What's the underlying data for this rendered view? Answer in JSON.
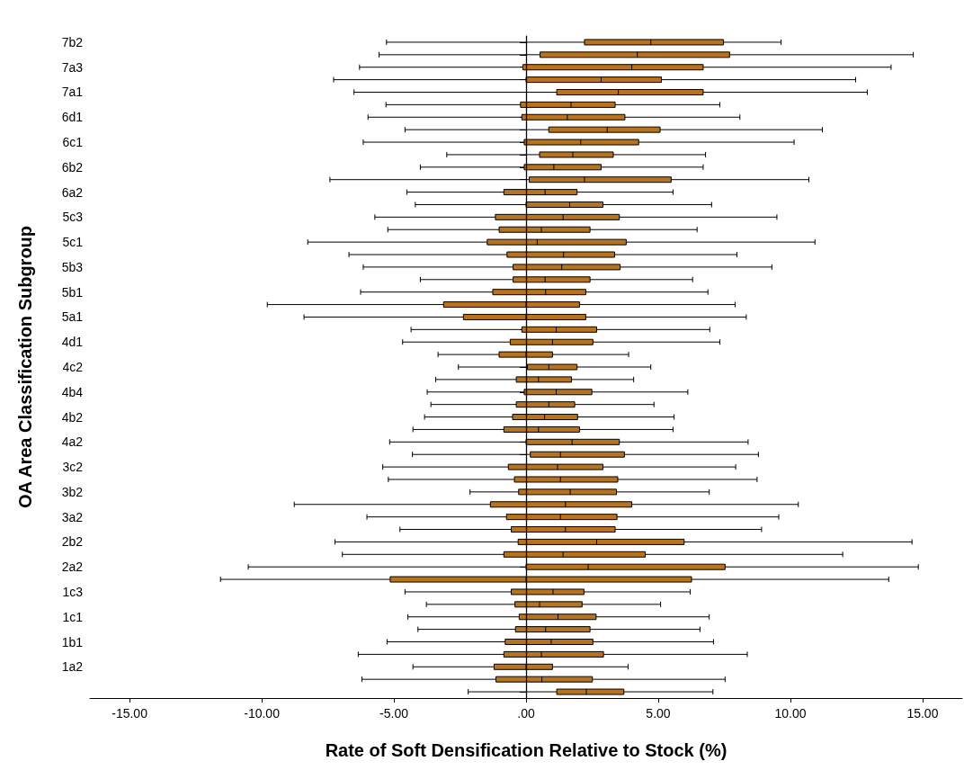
{
  "chart_data": {
    "type": "box",
    "orientation": "horizontal",
    "xlabel": "Rate of Soft Densification Relative to Stock (%)",
    "ylabel": "OA Area Classification Subgroup",
    "categories": [
      "7b2",
      null,
      "7a3",
      null,
      "7a1",
      null,
      "6d1",
      null,
      "6c1",
      null,
      "6b2",
      null,
      "6a2",
      null,
      "5c3",
      null,
      "5c1",
      null,
      "5b3",
      null,
      "5b1",
      null,
      "5a1",
      null,
      "4d1",
      null,
      "4c2",
      null,
      "4b4",
      null,
      "4b2",
      null,
      "4a2",
      null,
      "3c2",
      null,
      "3b2",
      null,
      "3a2",
      null,
      "2b2",
      null,
      "2a2",
      null,
      "1c3",
      null,
      "1c1",
      null,
      "1b1",
      null,
      "1a2",
      null,
      null
    ],
    "series": [
      {
        "color": "#b8731f",
        "boxes": [
          {
            "low": -5.28,
            "q1": 2.21,
            "median": 4.72,
            "q3": 7.47,
            "high": 9.65
          },
          {
            "low": -5.56,
            "q1": 0.53,
            "median": 4.21,
            "q3": 7.7,
            "high": 14.65
          },
          {
            "low": -6.3,
            "q1": -0.12,
            "median": 4.0,
            "q3": 6.7,
            "high": 13.81
          },
          {
            "low": -7.28,
            "q1": 0.0,
            "median": 2.84,
            "q3": 5.12,
            "high": 12.47
          },
          {
            "low": -6.51,
            "q1": 1.16,
            "median": 3.49,
            "q3": 6.7,
            "high": 12.91
          },
          {
            "low": -5.3,
            "q1": -0.21,
            "median": 1.7,
            "q3": 3.37,
            "high": 7.33
          },
          {
            "low": -5.98,
            "q1": -0.16,
            "median": 1.56,
            "q3": 3.74,
            "high": 8.09
          },
          {
            "low": -4.58,
            "q1": 0.86,
            "median": 3.07,
            "q3": 5.07,
            "high": 11.21
          },
          {
            "low": -6.16,
            "q1": -0.07,
            "median": 2.07,
            "q3": 4.26,
            "high": 10.14
          },
          {
            "low": -3.0,
            "q1": 0.51,
            "median": 1.77,
            "q3": 3.3,
            "high": 6.79
          },
          {
            "low": -4.0,
            "q1": -0.07,
            "median": 1.05,
            "q3": 2.84,
            "high": 6.7
          },
          {
            "low": -7.42,
            "q1": 0.12,
            "median": 2.21,
            "q3": 5.49,
            "high": 10.7
          },
          {
            "low": -4.51,
            "q1": -0.84,
            "median": 0.72,
            "q3": 1.93,
            "high": 5.56
          },
          {
            "low": -4.19,
            "q1": 0.0,
            "median": 1.65,
            "q3": 2.91,
            "high": 7.02
          },
          {
            "low": -5.72,
            "q1": -1.16,
            "median": 1.4,
            "q3": 3.53,
            "high": 9.49
          },
          {
            "low": -5.23,
            "q1": -1.02,
            "median": 0.58,
            "q3": 2.42,
            "high": 6.47
          },
          {
            "low": -8.26,
            "q1": -1.47,
            "median": 0.42,
            "q3": 3.79,
            "high": 10.93
          },
          {
            "low": -6.7,
            "q1": -0.72,
            "median": 1.42,
            "q3": 3.35,
            "high": 7.98
          },
          {
            "low": -6.16,
            "q1": -0.49,
            "median": 1.35,
            "q3": 3.56,
            "high": 9.3
          },
          {
            "low": -4.0,
            "q1": -0.49,
            "median": 0.72,
            "q3": 2.42,
            "high": 6.3
          },
          {
            "low": -6.26,
            "q1": -1.26,
            "median": 0.74,
            "q3": 2.26,
            "high": 6.88
          },
          {
            "low": -9.79,
            "q1": -3.12,
            "median": 0.0,
            "q3": 2.02,
            "high": 7.91
          },
          {
            "low": -8.4,
            "q1": -2.37,
            "median": 0.0,
            "q3": 2.26,
            "high": 8.33
          },
          {
            "low": -4.35,
            "q1": -0.16,
            "median": 1.14,
            "q3": 2.67,
            "high": 6.95
          },
          {
            "low": -4.67,
            "q1": -0.6,
            "median": 1.0,
            "q3": 2.53,
            "high": 7.33
          },
          {
            "low": -3.33,
            "q1": -1.02,
            "median": 0.0,
            "q3": 1.0,
            "high": 3.88
          },
          {
            "low": -2.56,
            "q1": 0.05,
            "median": 0.86,
            "q3": 1.93,
            "high": 4.72
          },
          {
            "low": -3.42,
            "q1": -0.37,
            "median": 0.47,
            "q3": 1.72,
            "high": 4.07
          },
          {
            "low": -3.74,
            "q1": -0.07,
            "median": 1.14,
            "q3": 2.49,
            "high": 6.12
          },
          {
            "low": -3.6,
            "q1": -0.37,
            "median": 0.86,
            "q3": 1.84,
            "high": 4.84
          },
          {
            "low": -3.84,
            "q1": -0.51,
            "median": 0.7,
            "q3": 1.95,
            "high": 5.6
          },
          {
            "low": -4.28,
            "q1": -0.84,
            "median": 0.47,
            "q3": 2.02,
            "high": 5.56
          },
          {
            "low": -5.16,
            "q1": 0.0,
            "median": 1.74,
            "q3": 3.53,
            "high": 8.4
          },
          {
            "low": -4.3,
            "q1": 0.16,
            "median": 1.3,
            "q3": 3.72,
            "high": 8.79
          },
          {
            "low": -5.42,
            "q1": -0.67,
            "median": 1.19,
            "q3": 2.91,
            "high": 7.93
          },
          {
            "low": -5.21,
            "q1": -0.44,
            "median": 1.3,
            "q3": 3.47,
            "high": 8.74
          },
          {
            "low": -2.12,
            "q1": -0.28,
            "median": 1.67,
            "q3": 3.42,
            "high": 6.93
          },
          {
            "low": -8.77,
            "q1": -1.35,
            "median": 1.49,
            "q3": 4.0,
            "high": 10.3
          },
          {
            "low": -6.02,
            "q1": -0.74,
            "median": 1.3,
            "q3": 3.44,
            "high": 9.56
          },
          {
            "low": -4.77,
            "q1": -0.56,
            "median": 1.49,
            "q3": 3.37,
            "high": 8.91
          },
          {
            "low": -7.23,
            "q1": -0.3,
            "median": 2.67,
            "q3": 5.98,
            "high": 14.6
          },
          {
            "low": -6.95,
            "q1": -0.84,
            "median": 1.4,
            "q3": 4.51,
            "high": 11.98
          },
          {
            "low": -10.51,
            "q1": 0.0,
            "median": 2.35,
            "q3": 7.53,
            "high": 14.84
          },
          {
            "low": -11.56,
            "q1": -5.14,
            "median": 0.0,
            "q3": 6.26,
            "high": 13.72
          },
          {
            "low": -4.58,
            "q1": -0.56,
            "median": 1.02,
            "q3": 2.19,
            "high": 6.21
          },
          {
            "low": -3.77,
            "q1": -0.42,
            "median": 0.51,
            "q3": 2.12,
            "high": 5.09
          },
          {
            "low": -4.47,
            "q1": -0.26,
            "median": 1.21,
            "q3": 2.65,
            "high": 6.93
          },
          {
            "low": -4.09,
            "q1": -0.4,
            "median": 0.74,
            "q3": 2.42,
            "high": 6.58
          },
          {
            "low": -5.26,
            "q1": -0.79,
            "median": 0.95,
            "q3": 2.53,
            "high": 7.09
          },
          {
            "low": -6.35,
            "q1": -0.84,
            "median": 0.58,
            "q3": 2.93,
            "high": 8.37
          },
          {
            "low": -4.28,
            "q1": -1.21,
            "median": 0.0,
            "q3": 1.0,
            "high": 3.86
          },
          {
            "low": -6.21,
            "q1": -1.14,
            "median": 0.6,
            "q3": 2.51,
            "high": 7.53
          },
          {
            "low": -2.19,
            "q1": 1.16,
            "median": 2.28,
            "q3": 3.7,
            "high": 7.07
          }
        ]
      }
    ],
    "xlim": [
      -16.5,
      16.5
    ],
    "xticks": [
      {
        "value": -15,
        "label": "-15.00"
      },
      {
        "value": -10,
        "label": "-10.00"
      },
      {
        "value": -5,
        "label": "-5.00"
      },
      {
        "value": 0,
        "label": ".00"
      },
      {
        "value": 5,
        "label": "5.00"
      },
      {
        "value": 10,
        "label": "10.00"
      },
      {
        "value": 15,
        "label": "15.00"
      }
    ],
    "ref_lines": [
      {
        "axis": "x",
        "value": 0,
        "color": "#000000"
      }
    ],
    "grid": false
  }
}
